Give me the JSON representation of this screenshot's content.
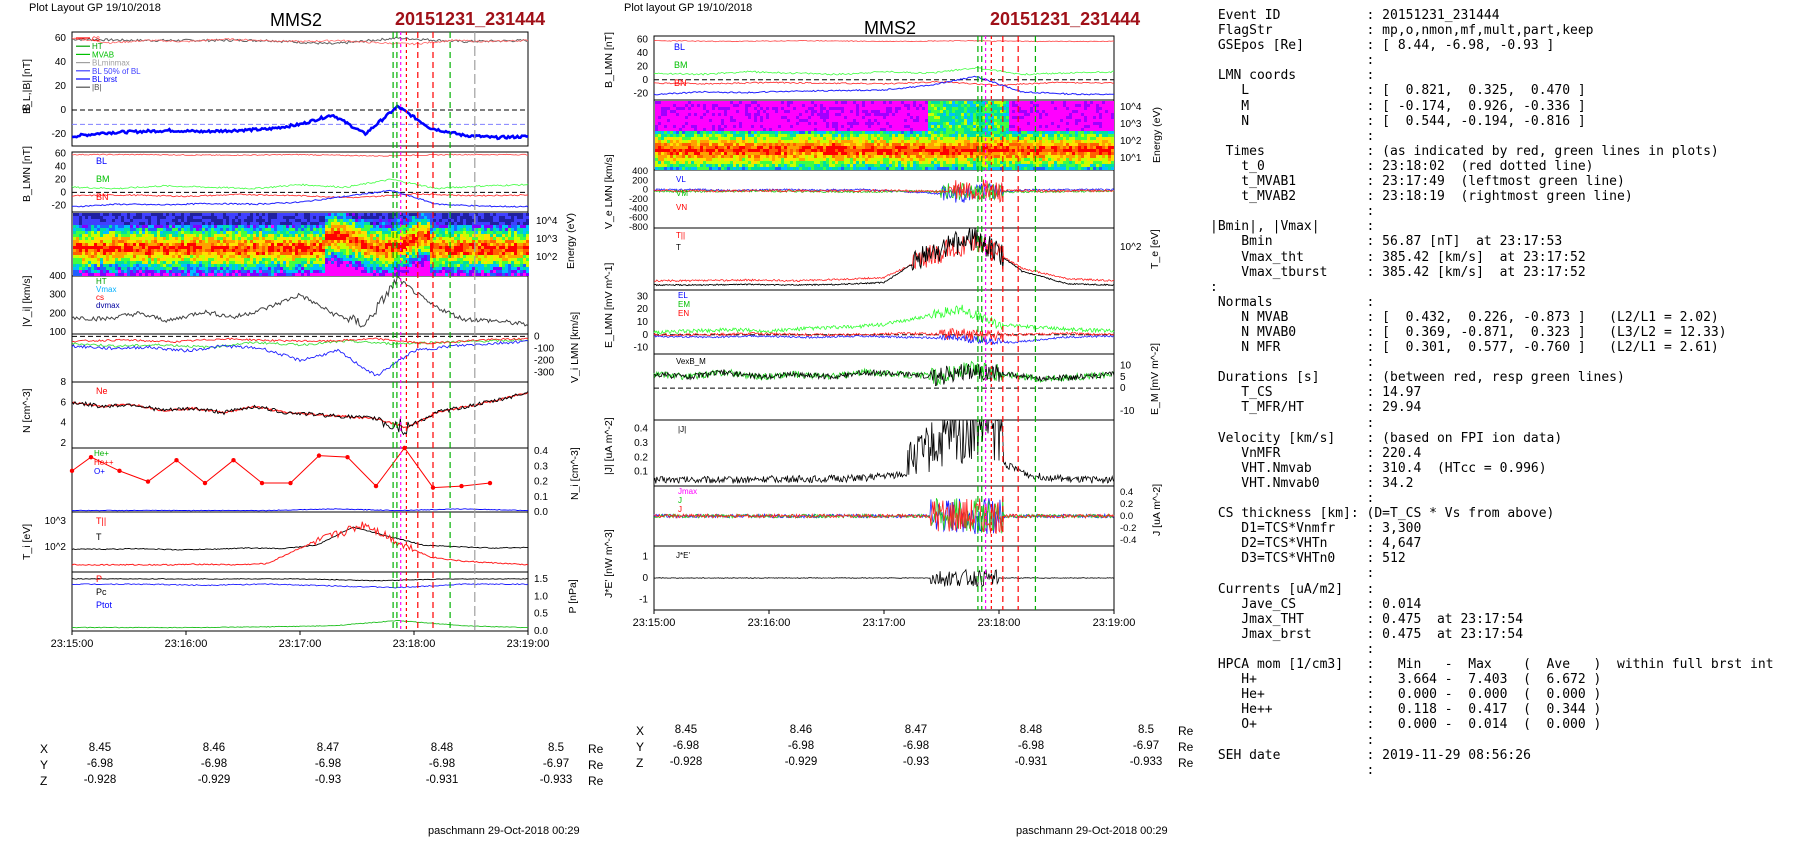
{
  "left_figure": {
    "plot_layout": "Plot Layout GP 19/10/2018",
    "spacecraft": "MMS2",
    "event_id": "20151231_231444",
    "footer": "paschmann 29-Oct-2018 00:29",
    "time_ticks": [
      "23:15:00",
      "23:16:00",
      "23:17:00",
      "23:18:00",
      "23:19:00"
    ],
    "position": {
      "labels": [
        "X",
        "Y",
        "Z"
      ],
      "x": [
        "8.45",
        "8.46",
        "8.47",
        "8.48",
        "8.5"
      ],
      "y": [
        "-6.98",
        "-6.98",
        "-6.98",
        "-6.98",
        "-6.97"
      ],
      "z": [
        "-0.928",
        "-0.929",
        "-0.93",
        "-0.931",
        "-0.933"
      ],
      "unit": "Re"
    },
    "panels": [
      {
        "ylabel": "B_L,|B| [nT]",
        "ticks_left": [
          "60",
          "40",
          "20",
          "0",
          "-20"
        ],
        "legend": [
          "cs",
          "HT",
          "MVAB",
          "BLminmax",
          "BL 50% of BL",
          "BL brst",
          "|B|"
        ]
      },
      {
        "ylabel": "B_LMN [nT]",
        "ticks_left": [
          "60",
          "40",
          "20",
          "0",
          "-20"
        ],
        "legend": [
          "BL",
          "BM",
          "BN"
        ]
      },
      {
        "ylabel": "Energy (eV)",
        "ticks_right": [
          "10^4",
          "10^3",
          "10^2"
        ]
      },
      {
        "ylabel": "|V_i| [km/s]",
        "ticks_left": [
          "400",
          "300",
          "200",
          "100"
        ],
        "legend": [
          "HT",
          "Vmax",
          "cs",
          "dvmax"
        ]
      },
      {
        "ylabel": "V_i LMN [km/s]",
        "ticks_right": [
          "0",
          "-100",
          "-200",
          "-300"
        ],
        "legend": [
          "L",
          "M",
          "N"
        ]
      },
      {
        "ylabel": "N [cm^-3]",
        "ticks_left": [
          "8",
          "6",
          "4",
          "2"
        ],
        "legend": [
          "Ne"
        ]
      },
      {
        "ylabel": "N_i [cm^-3]",
        "ticks_right": [
          "0.4",
          "0.3",
          "0.2",
          "0.1",
          "0.0"
        ],
        "legend": [
          "He+",
          "He++",
          "O+"
        ]
      },
      {
        "ylabel": "T_i [eV]",
        "ticks_left": [
          "10^3",
          "10^2"
        ],
        "legend": [
          "T||",
          "T"
        ]
      },
      {
        "ylabel": "P [nPa]",
        "ticks_right": [
          "1.5",
          "1.0",
          "0.5",
          "0.0"
        ],
        "legend": [
          "P",
          "Pc",
          "Ptot"
        ]
      }
    ]
  },
  "middle_figure": {
    "plot_layout": "Plot layout GP 19/10/2018",
    "spacecraft": "MMS2",
    "event_id": "20151231_231444",
    "footer": "paschmann 29-Oct-2018 00:29",
    "time_ticks": [
      "23:15:00",
      "23:16:00",
      "23:17:00",
      "23:18:00",
      "23:19:00"
    ],
    "position": {
      "labels": [
        "X",
        "Y",
        "Z"
      ],
      "x": [
        "8.45",
        "8.46",
        "8.47",
        "8.48",
        "8.5"
      ],
      "y": [
        "-6.98",
        "-6.98",
        "-6.98",
        "-6.98",
        "-6.97"
      ],
      "z": [
        "-0.928",
        "-0.929",
        "-0.93",
        "-0.931",
        "-0.933"
      ],
      "unit": "Re"
    },
    "panels": [
      {
        "ylabel": "B_LMN [nT]",
        "ticks_left": [
          "60",
          "40",
          "20",
          "0",
          "-20"
        ],
        "legend": [
          "BL",
          "BM",
          "BN"
        ]
      },
      {
        "ylabel": "Energy (eV)",
        "ticks_right": [
          "10^4",
          "10^3",
          "10^2",
          "10^1"
        ]
      },
      {
        "ylabel": "V_e LMN [km/s]",
        "ticks_left": [
          "400",
          "200",
          "0",
          "-200",
          "-400",
          "-600",
          "-800"
        ],
        "legend": [
          "VL",
          "VM",
          "VN"
        ]
      },
      {
        "ylabel": "T_e [eV]",
        "ticks_right": [
          "10^2"
        ],
        "legend": [
          "T||",
          "T"
        ]
      },
      {
        "ylabel": "E_LMN [mV m^-1]",
        "ticks_left": [
          "30",
          "20",
          "10",
          "0",
          "-10"
        ],
        "legend": [
          "EL",
          "EM",
          "EN"
        ]
      },
      {
        "ylabel": "E_M [mV m^-2]",
        "ticks_right": [
          "10",
          "5",
          "0",
          "-10"
        ],
        "legend": [
          "VexB_M"
        ]
      },
      {
        "ylabel": "|J| [uA m^-2]",
        "ticks_left": [
          "0.4",
          "0.3",
          "0.2",
          "0.1"
        ],
        "legend": [
          "|J|"
        ]
      },
      {
        "ylabel": "J [uA m^-2]",
        "ticks_right": [
          "0.4",
          "0.2",
          "0.0",
          "-0.2",
          "-0.4"
        ],
        "legend": [
          "Jmax",
          "J",
          "J"
        ]
      },
      {
        "ylabel": "J*E' [nW m^-3]",
        "ticks_left": [
          "1",
          "0",
          "-1"
        ],
        "legend": [
          "J*E'"
        ]
      }
    ]
  },
  "summary_lines": [
    " Event ID           : 20151231_231444",
    " FlagStr            : mp,o,nmon,mf,mult,part,keep",
    " GSEpos [Re]        : [ 8.44, -6.98, -0.93 ]",
    "                    :",
    " LMN coords         :",
    "    L               : [  0.821,  0.325,  0.470 ]",
    "    M               : [ -0.174,  0.926, -0.336 ]",
    "    N               : [  0.544, -0.194, -0.816 ]",
    "                    :",
    "  Times             : (as indicated by red, green lines in plots)",
    "    t_0             : 23:18:02  (red dotted line)",
    "    t_MVAB1         : 23:17:49  (leftmost green line)",
    "    t_MVAB2         : 23:18:19  (rightmost green line)",
    "                    :",
    "|Bmin|, |Vmax|      :",
    "    Bmin            : 56.87 [nT]  at 23:17:53",
    "    Vmax_tht        : 385.42 [km/s]  at 23:17:52",
    "    Vmax_tburst     : 385.42 [km/s]  at 23:17:52",
    ":",
    " Normals            :",
    "    N MVAB          : [  0.432,  0.226, -0.873 ]   (L2/L1 = 2.02)",
    "    N MVAB0         : [  0.369, -0.871,  0.323 ]   (L3/L2 = 12.33)",
    "    N MFR           : [  0.301,  0.577, -0.760 ]   (L2/L1 = 2.61)",
    "                    :",
    " Durations [s]      : (between red, resp green lines)",
    "    T_CS            : 14.97",
    "    T_MFR/HT        : 29.94",
    "                    :",
    " Velocity [km/s]    : (based on FPI ion data)",
    "    VnMFR           : 220.4",
    "    VHT.Nmvab       : 310.4  (HTcc = 0.996)",
    "    VHT.Nmvab0      : 34.2",
    "                    :",
    " CS thickness [km]: (D=T_CS * Vs from above)",
    "    D1=TCS*Vnmfr    : 3,300",
    "    D2=TCS*VHTn     : 4,647",
    "    D3=TCS*VHTn0    : 512",
    "                    :",
    " Currents [uA/m2]   :",
    "    Jave_CS         : 0.014",
    "    Jmax_THT        : 0.475  at 23:17:54",
    "    Jmax_brst       : 0.475  at 23:17:54",
    "                    :",
    " HPCA mom [1/cm3]   :   Min   -  Max    (  Ave   )  within full brst int",
    "    H+              :   3.664 -  7.403  (  6.672 )",
    "    He+             :   0.000 -  0.000  (  0.000 )",
    "    He++            :   0.118 -  0.417  (  0.344 )",
    "    O+              :   0.000 -  0.014  (  0.000 )",
    "                    :",
    " SEH date           : 2019-11-29 08:56:26",
    "                    :"
  ],
  "chart_data": [
    {
      "type": "line",
      "title": "MMS2 20151231_231444",
      "xlabel": "",
      "x_ticks": [
        "23:15:00",
        "23:16:00",
        "23:17:00",
        "23:18:00",
        "23:19:00"
      ],
      "series": [
        {
          "name": "BL brst",
          "panel": "B_L,|B| [nT]",
          "color": "#0000ff",
          "x": [
            "23:15:00",
            "23:15:30",
            "23:16:00",
            "23:16:30",
            "23:17:00",
            "23:17:20",
            "23:17:35",
            "23:17:45",
            "23:17:55",
            "23:18:05",
            "23:18:20",
            "23:18:40",
            "23:19:00"
          ],
          "values": [
            -22,
            -19,
            -17,
            -18,
            -17,
            -12,
            -2,
            -20,
            2,
            -15,
            -21,
            -23,
            -22
          ]
        },
        {
          "name": "|B|",
          "panel": "B_L,|B| [nT]",
          "color": "#555555",
          "x": [
            "23:15:00",
            "23:16:00",
            "23:17:00",
            "23:17:50",
            "23:18:00",
            "23:18:30",
            "23:19:00"
          ],
          "values": [
            59,
            58,
            58,
            55,
            60,
            57,
            58
          ]
        },
        {
          "name": "|Vi|",
          "panel": "|V_i| [km/s]",
          "color": "#555555",
          "x": [
            "23:15:00",
            "23:15:30",
            "23:16:00",
            "23:16:30",
            "23:17:00",
            "23:17:15",
            "23:17:40",
            "23:17:50",
            "23:18:10",
            "23:18:40",
            "23:19:00"
          ],
          "values": [
            180,
            170,
            200,
            170,
            220,
            300,
            140,
            385,
            250,
            160,
            140
          ]
        },
        {
          "name": "Ne",
          "panel": "N [cm^-3]",
          "color": "#000000",
          "x": [
            "23:15:00",
            "23:15:30",
            "23:16:00",
            "23:16:30",
            "23:17:00",
            "23:17:40",
            "23:18:00",
            "23:18:30",
            "23:19:00"
          ],
          "values": [
            6.0,
            5.6,
            5.2,
            5.6,
            5.0,
            4.6,
            3.5,
            5.0,
            7.0
          ]
        },
        {
          "name": "He++",
          "panel": "N_i [cm^-3]",
          "color": "#ff0000",
          "x": [
            "23:15:00",
            "23:15:10",
            "23:15:25",
            "23:15:40",
            "23:15:55",
            "23:16:10",
            "23:16:25",
            "23:16:40",
            "23:16:55",
            "23:17:10",
            "23:17:25",
            "23:17:40",
            "23:17:55",
            "23:18:10",
            "23:18:25",
            "23:18:40"
          ],
          "values": [
            0.27,
            0.36,
            0.27,
            0.2,
            0.34,
            0.19,
            0.34,
            0.19,
            0.19,
            0.37,
            0.36,
            0.17,
            0.42,
            0.16,
            0.17,
            0.19
          ]
        },
        {
          "name": "BL",
          "panel": "B_LMN [nT] (middle)",
          "color": "#0000ff",
          "x": [
            "23:15:00",
            "23:16:00",
            "23:17:00",
            "23:17:40",
            "23:17:55",
            "23:18:10",
            "23:19:00"
          ],
          "values": [
            -22,
            -18,
            -16,
            -10,
            5,
            -18,
            -22
          ]
        },
        {
          "name": "|J|",
          "panel": "|J| [uA m^-2]",
          "color": "#000000",
          "x": [
            "23:15:00",
            "23:16:00",
            "23:17:00",
            "23:17:30",
            "23:17:54",
            "23:18:10",
            "23:19:00"
          ],
          "values": [
            0.03,
            0.03,
            0.05,
            0.12,
            0.475,
            0.08,
            0.03
          ]
        }
      ]
    }
  ]
}
